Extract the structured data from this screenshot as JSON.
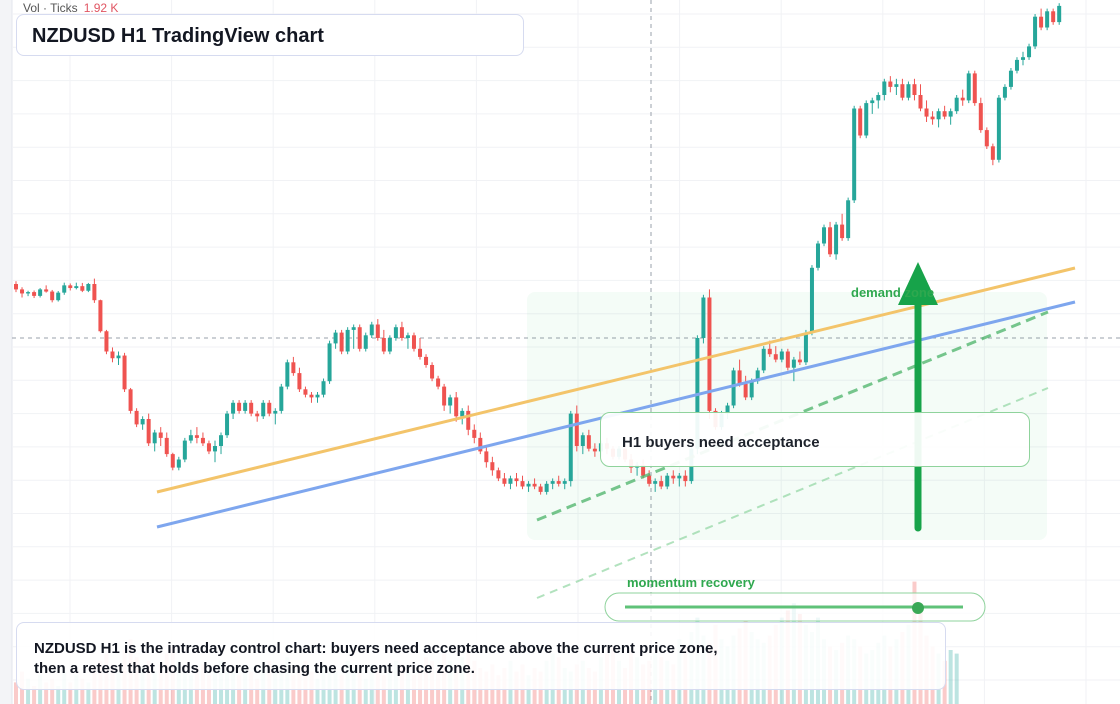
{
  "header": {
    "volume_label": "Vol · Ticks",
    "volume_value": "1.92 K"
  },
  "title": "NZDUSD H1 TradingView chart",
  "annotations": {
    "demand_zone_label": "demand zone",
    "momentum_label": "momentum recovery",
    "callout_text": "H1 buyers need acceptance"
  },
  "footer": {
    "note": "NZDUSD H1 is the intraday control chart: buyers need acceptance above the current price zone, then a retest that holds before chasing the current price zone."
  },
  "colors": {
    "bull": "#26a69a",
    "bear": "#ef5350",
    "support_line": "#7ea6ee",
    "resistance_line": "#f3c46a",
    "accent_green": "#17a34a",
    "callout_border": "#8fd39c"
  },
  "chart_data": {
    "type": "candlestick",
    "symbol": "NZDUSD",
    "timeframe": "H1",
    "title": "NZDUSD H1 TradingView chart",
    "volume_unit": "ticks",
    "candles": [
      {
        "o": 20,
        "h": 21,
        "l": 17,
        "c": 18
      },
      {
        "o": 18,
        "h": 18.8,
        "l": 15,
        "c": 16.5
      },
      {
        "o": 16.5,
        "h": 17.5,
        "l": 15.5,
        "c": 17
      },
      {
        "o": 17,
        "h": 17.6,
        "l": 14.8,
        "c": 15.6
      },
      {
        "o": 15.6,
        "h": 18.5,
        "l": 15,
        "c": 18
      },
      {
        "o": 18,
        "h": 19.5,
        "l": 16.8,
        "c": 17.2
      },
      {
        "o": 17.2,
        "h": 17.8,
        "l": 13.2,
        "c": 14
      },
      {
        "o": 14,
        "h": 17.4,
        "l": 13.5,
        "c": 16.8
      },
      {
        "o": 16.8,
        "h": 20.5,
        "l": 16,
        "c": 19.5
      },
      {
        "o": 19.5,
        "h": 20.2,
        "l": 17.6,
        "c": 18.5
      },
      {
        "o": 18.5,
        "h": 20.5,
        "l": 18,
        "c": 19.2
      },
      {
        "o": 19.2,
        "h": 20.4,
        "l": 17,
        "c": 17.5
      },
      {
        "o": 17.5,
        "h": 20.4,
        "l": 17,
        "c": 20
      },
      {
        "o": 20,
        "h": 22,
        "l": 13,
        "c": 14
      },
      {
        "o": 14,
        "h": 14.2,
        "l": 2,
        "c": 2.5
      },
      {
        "o": 2.5,
        "h": 3,
        "l": -6,
        "c": -5
      },
      {
        "o": -5,
        "h": -3.5,
        "l": -9,
        "c": -7.5
      },
      {
        "o": -7.5,
        "h": -5,
        "l": -10,
        "c": -6.5
      },
      {
        "o": -6.5,
        "h": -5.5,
        "l": -20,
        "c": -19
      },
      {
        "o": -19,
        "h": -18.5,
        "l": -28,
        "c": -27
      },
      {
        "o": -27,
        "h": -26,
        "l": -33,
        "c": -32
      },
      {
        "o": -32,
        "h": -29,
        "l": -34,
        "c": -30
      },
      {
        "o": -30,
        "h": -28,
        "l": -40,
        "c": -39
      },
      {
        "o": -39,
        "h": -34,
        "l": -42,
        "c": -35
      },
      {
        "o": -35,
        "h": -33,
        "l": -40,
        "c": -37
      },
      {
        "o": -37,
        "h": -35,
        "l": -44,
        "c": -43
      },
      {
        "o": -43,
        "h": -42.5,
        "l": -49,
        "c": -48
      },
      {
        "o": -48,
        "h": -44,
        "l": -49,
        "c": -45
      },
      {
        "o": -45,
        "h": -37,
        "l": -46,
        "c": -38
      },
      {
        "o": -38,
        "h": -34,
        "l": -39,
        "c": -36
      },
      {
        "o": -36,
        "h": -33,
        "l": -39,
        "c": -37
      },
      {
        "o": -37,
        "h": -35,
        "l": -40,
        "c": -39
      },
      {
        "o": -39,
        "h": -38,
        "l": -43,
        "c": -42
      },
      {
        "o": -42,
        "h": -38,
        "l": -46,
        "c": -40
      },
      {
        "o": -40,
        "h": -35,
        "l": -43,
        "c": -36
      },
      {
        "o": -36,
        "h": -27,
        "l": -37,
        "c": -28
      },
      {
        "o": -28,
        "h": -23,
        "l": -30,
        "c": -24
      },
      {
        "o": -24,
        "h": -23,
        "l": -28,
        "c": -27
      },
      {
        "o": -27,
        "h": -23,
        "l": -28,
        "c": -24
      },
      {
        "o": -24,
        "h": -23,
        "l": -29,
        "c": -28
      },
      {
        "o": -28,
        "h": -27,
        "l": -31,
        "c": -29
      },
      {
        "o": -29,
        "h": -23,
        "l": -30,
        "c": -24
      },
      {
        "o": -24,
        "h": -23,
        "l": -29,
        "c": -28
      },
      {
        "o": -28,
        "h": -26,
        "l": -32,
        "c": -27
      },
      {
        "o": -27,
        "h": -17,
        "l": -28,
        "c": -18
      },
      {
        "o": -18,
        "h": -8,
        "l": -19,
        "c": -9
      },
      {
        "o": -9,
        "h": -7,
        "l": -14,
        "c": -13
      },
      {
        "o": -13,
        "h": -11,
        "l": -20,
        "c": -19
      },
      {
        "o": -19,
        "h": -18,
        "l": -22,
        "c": -21
      },
      {
        "o": -21,
        "h": -20,
        "l": -24,
        "c": -22
      },
      {
        "o": -22,
        "h": -20,
        "l": -24,
        "c": -21
      },
      {
        "o": -21,
        "h": -15,
        "l": -22,
        "c": -16
      },
      {
        "o": -16,
        "h": -1,
        "l": -17,
        "c": -2
      },
      {
        "o": -2,
        "h": 3,
        "l": -4,
        "c": 2
      },
      {
        "o": 2,
        "h": 3,
        "l": -6,
        "c": -5
      },
      {
        "o": -5,
        "h": 4,
        "l": -6,
        "c": 3
      },
      {
        "o": 3,
        "h": 5,
        "l": -4,
        "c": 4
      },
      {
        "o": 4,
        "h": 5,
        "l": -5,
        "c": -4
      },
      {
        "o": -4,
        "h": 2,
        "l": -5,
        "c": 1
      },
      {
        "o": 1,
        "h": 6,
        "l": 0,
        "c": 5
      },
      {
        "o": 5,
        "h": 7,
        "l": -1,
        "c": 0
      },
      {
        "o": 0,
        "h": 3,
        "l": -6,
        "c": -5
      },
      {
        "o": -5,
        "h": 1,
        "l": -6,
        "c": 0
      },
      {
        "o": 0,
        "h": 5,
        "l": -1,
        "c": 4
      },
      {
        "o": 4,
        "h": 6,
        "l": -1,
        "c": 0
      },
      {
        "o": 0,
        "h": 2,
        "l": -4,
        "c": 1
      },
      {
        "o": 1,
        "h": 2,
        "l": -5,
        "c": -4
      },
      {
        "o": -4,
        "h": 0,
        "l": -8,
        "c": -7
      },
      {
        "o": -7,
        "h": -6,
        "l": -11,
        "c": -10
      },
      {
        "o": -10,
        "h": -9,
        "l": -16,
        "c": -15
      },
      {
        "o": -15,
        "h": -14,
        "l": -19,
        "c": -18
      },
      {
        "o": -18,
        "h": -17,
        "l": -27,
        "c": -25
      },
      {
        "o": -25,
        "h": -21,
        "l": -28,
        "c": -22
      },
      {
        "o": -22,
        "h": -20,
        "l": -31,
        "c": -29
      },
      {
        "o": -29,
        "h": -26,
        "l": -32,
        "c": -27
      },
      {
        "o": -27,
        "h": -25,
        "l": -36,
        "c": -34
      },
      {
        "o": -34,
        "h": -32,
        "l": -39,
        "c": -37
      },
      {
        "o": -37,
        "h": -35,
        "l": -43,
        "c": -42
      },
      {
        "o": -42,
        "h": -40,
        "l": -48,
        "c": -46
      },
      {
        "o": -46,
        "h": -44,
        "l": -51,
        "c": -49
      },
      {
        "o": -49,
        "h": -48,
        "l": -53,
        "c": -52
      },
      {
        "o": -52,
        "h": -50,
        "l": -55,
        "c": -54
      },
      {
        "o": -54,
        "h": -51,
        "l": -56,
        "c": -52
      },
      {
        "o": -52,
        "h": -50,
        "l": -55,
        "c": -53
      },
      {
        "o": -53,
        "h": -51,
        "l": -56,
        "c": -55
      },
      {
        "o": -55,
        "h": -53,
        "l": -57,
        "c": -54
      },
      {
        "o": -54,
        "h": -52,
        "l": -56,
        "c": -55
      },
      {
        "o": -55,
        "h": -54,
        "l": -58,
        "c": -57
      },
      {
        "o": -57,
        "h": -53,
        "l": -58,
        "c": -54
      },
      {
        "o": -54,
        "h": -52,
        "l": -56,
        "c": -53
      },
      {
        "o": -53,
        "h": -51,
        "l": -55,
        "c": -54
      },
      {
        "o": -54,
        "h": -52,
        "l": -56,
        "c": -53
      },
      {
        "o": -53,
        "h": -27,
        "l": -55,
        "c": -28
      },
      {
        "o": -28,
        "h": -25,
        "l": -42,
        "c": -40
      },
      {
        "o": -40,
        "h": -35,
        "l": -43,
        "c": -36
      },
      {
        "o": -36,
        "h": -34,
        "l": -42,
        "c": -41
      },
      {
        "o": -41,
        "h": -39,
        "l": -44,
        "c": -42
      },
      {
        "o": -42,
        "h": -38,
        "l": -44,
        "c": -39
      },
      {
        "o": -39,
        "h": -37,
        "l": -43,
        "c": -41
      },
      {
        "o": -41,
        "h": -40,
        "l": -45,
        "c": -44
      },
      {
        "o": -44,
        "h": -40,
        "l": -45,
        "c": -41
      },
      {
        "o": -41,
        "h": -39,
        "l": -46,
        "c": -45
      },
      {
        "o": -45,
        "h": -43,
        "l": -50,
        "c": -48
      },
      {
        "o": -48,
        "h": -46,
        "l": -51,
        "c": -47
      },
      {
        "o": -47,
        "h": -45,
        "l": -52,
        "c": -51
      },
      {
        "o": -51,
        "h": -49,
        "l": -55,
        "c": -54
      },
      {
        "o": -54,
        "h": -52,
        "l": -57,
        "c": -53
      },
      {
        "o": -53,
        "h": -51,
        "l": -56,
        "c": -55
      },
      {
        "o": -55,
        "h": -50,
        "l": -56,
        "c": -51
      },
      {
        "o": -51,
        "h": -49,
        "l": -54,
        "c": -52
      },
      {
        "o": -52,
        "h": -50,
        "l": -55,
        "c": -51
      },
      {
        "o": -51,
        "h": -49,
        "l": -55,
        "c": -53
      },
      {
        "o": -53,
        "h": -40,
        "l": -54,
        "c": -41
      },
      {
        "o": -41,
        "h": 1,
        "l": -43,
        "c": 0
      },
      {
        "o": 0,
        "h": 16,
        "l": -2,
        "c": 15
      },
      {
        "o": 15,
        "h": 18,
        "l": -30,
        "c": -27
      },
      {
        "o": -27,
        "h": -26,
        "l": -34,
        "c": -33
      },
      {
        "o": -33,
        "h": -27,
        "l": -34,
        "c": -28
      },
      {
        "o": -28,
        "h": -24,
        "l": -30,
        "c": -25
      },
      {
        "o": -25,
        "h": -11,
        "l": -26,
        "c": -12
      },
      {
        "o": -12,
        "h": -8,
        "l": -18,
        "c": -17
      },
      {
        "o": -17,
        "h": -14,
        "l": -23,
        "c": -22
      },
      {
        "o": -22,
        "h": -15,
        "l": -23,
        "c": -16
      },
      {
        "o": -16,
        "h": -11,
        "l": -17,
        "c": -12
      },
      {
        "o": -12,
        "h": -3,
        "l": -13,
        "c": -4
      },
      {
        "o": -4,
        "h": -1,
        "l": -7,
        "c": -6
      },
      {
        "o": -6,
        "h": -3,
        "l": -9,
        "c": -8
      },
      {
        "o": -8,
        "h": -4,
        "l": -9,
        "c": -5
      },
      {
        "o": -5,
        "h": -4,
        "l": -12,
        "c": -11
      },
      {
        "o": -11,
        "h": -7,
        "l": -16,
        "c": -8
      },
      {
        "o": -8,
        "h": -5,
        "l": -10,
        "c": -9
      },
      {
        "o": -9,
        "h": 3,
        "l": -10,
        "c": 2
      },
      {
        "o": 2,
        "h": 27,
        "l": 1,
        "c": 26
      },
      {
        "o": 26,
        "h": 36,
        "l": 25,
        "c": 35
      },
      {
        "o": 35,
        "h": 42,
        "l": 34,
        "c": 41
      },
      {
        "o": 41,
        "h": 43,
        "l": 30,
        "c": 31
      },
      {
        "o": 31,
        "h": 43,
        "l": 29,
        "c": 42
      },
      {
        "o": 42,
        "h": 46,
        "l": 36,
        "c": 37
      },
      {
        "o": 37,
        "h": 52,
        "l": 36,
        "c": 51
      },
      {
        "o": 51,
        "h": 86,
        "l": 50,
        "c": 85
      },
      {
        "o": 85,
        "h": 86,
        "l": 74,
        "c": 75
      },
      {
        "o": 75,
        "h": 88,
        "l": 74,
        "c": 87
      },
      {
        "o": 87,
        "h": 89,
        "l": 83,
        "c": 88
      },
      {
        "o": 88,
        "h": 91,
        "l": 85,
        "c": 90
      },
      {
        "o": 90,
        "h": 96,
        "l": 88,
        "c": 95
      },
      {
        "o": 95,
        "h": 97,
        "l": 91,
        "c": 93
      },
      {
        "o": 93,
        "h": 96,
        "l": 90,
        "c": 94
      },
      {
        "o": 94,
        "h": 96,
        "l": 88,
        "c": 89
      },
      {
        "o": 89,
        "h": 95,
        "l": 88,
        "c": 94
      },
      {
        "o": 94,
        "h": 96,
        "l": 88,
        "c": 90
      },
      {
        "o": 90,
        "h": 94,
        "l": 84,
        "c": 85
      },
      {
        "o": 85,
        "h": 88,
        "l": 80,
        "c": 82
      },
      {
        "o": 82,
        "h": 84,
        "l": 79,
        "c": 81
      },
      {
        "o": 81,
        "h": 85,
        "l": 78,
        "c": 84
      },
      {
        "o": 84,
        "h": 86,
        "l": 81,
        "c": 82
      },
      {
        "o": 82,
        "h": 85,
        "l": 79,
        "c": 84
      },
      {
        "o": 84,
        "h": 90,
        "l": 83,
        "c": 89
      },
      {
        "o": 89,
        "h": 92,
        "l": 86,
        "c": 88
      },
      {
        "o": 88,
        "h": 99,
        "l": 87,
        "c": 98
      },
      {
        "o": 98,
        "h": 99,
        "l": 86,
        "c": 87
      },
      {
        "o": 87,
        "h": 89,
        "l": 76,
        "c": 77
      },
      {
        "o": 77,
        "h": 78,
        "l": 70,
        "c": 71
      },
      {
        "o": 71,
        "h": 72,
        "l": 64,
        "c": 66
      },
      {
        "o": 66,
        "h": 90,
        "l": 65,
        "c": 89
      },
      {
        "o": 89,
        "h": 94,
        "l": 88,
        "c": 93
      },
      {
        "o": 93,
        "h": 100,
        "l": 92,
        "c": 99
      },
      {
        "o": 99,
        "h": 104,
        "l": 98,
        "c": 103
      },
      {
        "o": 103,
        "h": 106,
        "l": 101,
        "c": 104
      },
      {
        "o": 104,
        "h": 109,
        "l": 103,
        "c": 108
      },
      {
        "o": 108,
        "h": 120,
        "l": 107,
        "c": 119
      },
      {
        "o": 119,
        "h": 122,
        "l": 114,
        "c": 115
      },
      {
        "o": 115,
        "h": 122,
        "l": 114,
        "c": 121
      },
      {
        "o": 121,
        "h": 122,
        "l": 116,
        "c": 117
      },
      {
        "o": 117,
        "h": 124,
        "l": 116,
        "c": 123
      }
    ],
    "volume": [
      6,
      9,
      7,
      5,
      8,
      6,
      7,
      5,
      9,
      6,
      8,
      7,
      6,
      10,
      12,
      14,
      11,
      9,
      15,
      18,
      13,
      10,
      12,
      9,
      11,
      14,
      16,
      12,
      9,
      8,
      10,
      11,
      8,
      9,
      12,
      10,
      9,
      8,
      11,
      9,
      7,
      10,
      12,
      11,
      9,
      13,
      8,
      10,
      12,
      9,
      7,
      11,
      10,
      9,
      8,
      12,
      10,
      9,
      7,
      11,
      9,
      8,
      10,
      12,
      11,
      9,
      8,
      10,
      13,
      12,
      10,
      14,
      12,
      11,
      13,
      15,
      12,
      10,
      9,
      11,
      8,
      10,
      12,
      9,
      11,
      8,
      10,
      9,
      12,
      14,
      13,
      10,
      9,
      11,
      12,
      10,
      9,
      13,
      14,
      16,
      12,
      10,
      15,
      13,
      11,
      12,
      14,
      13,
      12,
      11,
      18,
      16,
      20,
      24,
      19,
      17,
      22,
      18,
      16,
      19,
      21,
      23,
      20,
      18,
      17,
      19,
      22,
      24,
      26,
      28,
      25,
      22,
      20,
      24,
      18,
      16,
      15,
      17,
      19,
      18,
      16,
      14,
      15,
      17,
      19,
      16,
      18,
      20,
      22,
      34,
      26,
      19,
      16,
      14,
      12,
      15,
      14
    ]
  }
}
